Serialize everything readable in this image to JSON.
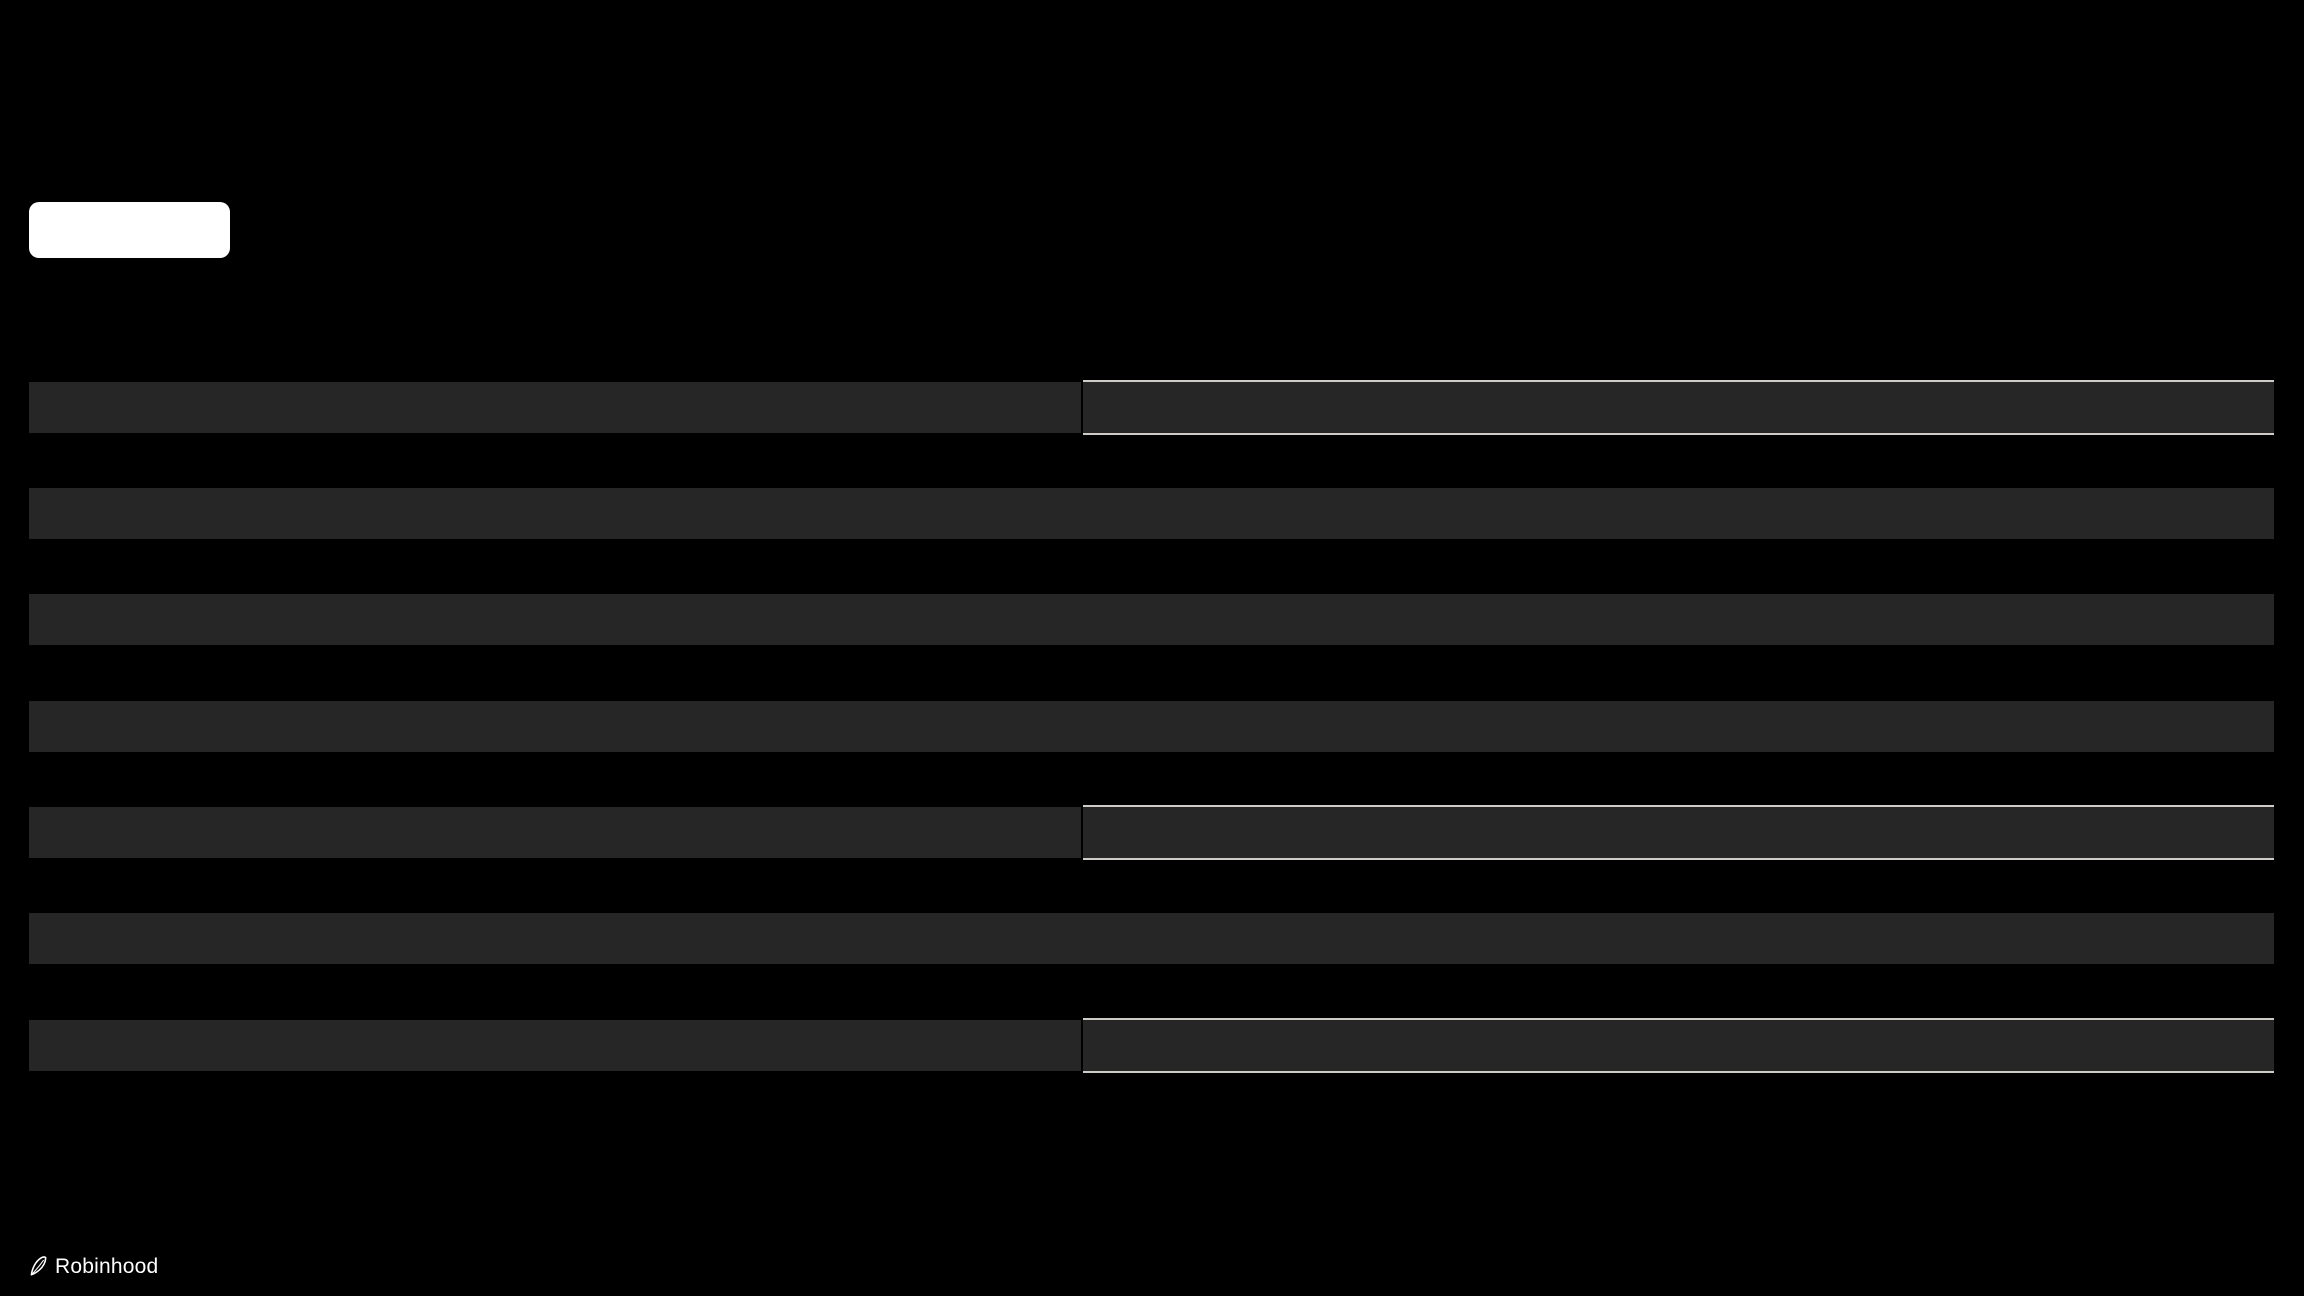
{
  "page": {
    "background": "#000000"
  },
  "cta_button": {
    "label": "",
    "background": "#ffffff"
  },
  "skeleton": {
    "bar_color": "#262626",
    "underline_color": "#cfccc7",
    "rows": [
      {
        "variant": "split-underlined"
      },
      {
        "variant": "plain"
      },
      {
        "variant": "plain"
      },
      {
        "variant": "plain"
      },
      {
        "variant": "split-underlined"
      },
      {
        "variant": "plain"
      },
      {
        "variant": "split-underlined"
      }
    ]
  },
  "footer": {
    "brand": "Robinhood",
    "icon": "robinhood-feather-icon",
    "text_color": "#ffffff"
  }
}
